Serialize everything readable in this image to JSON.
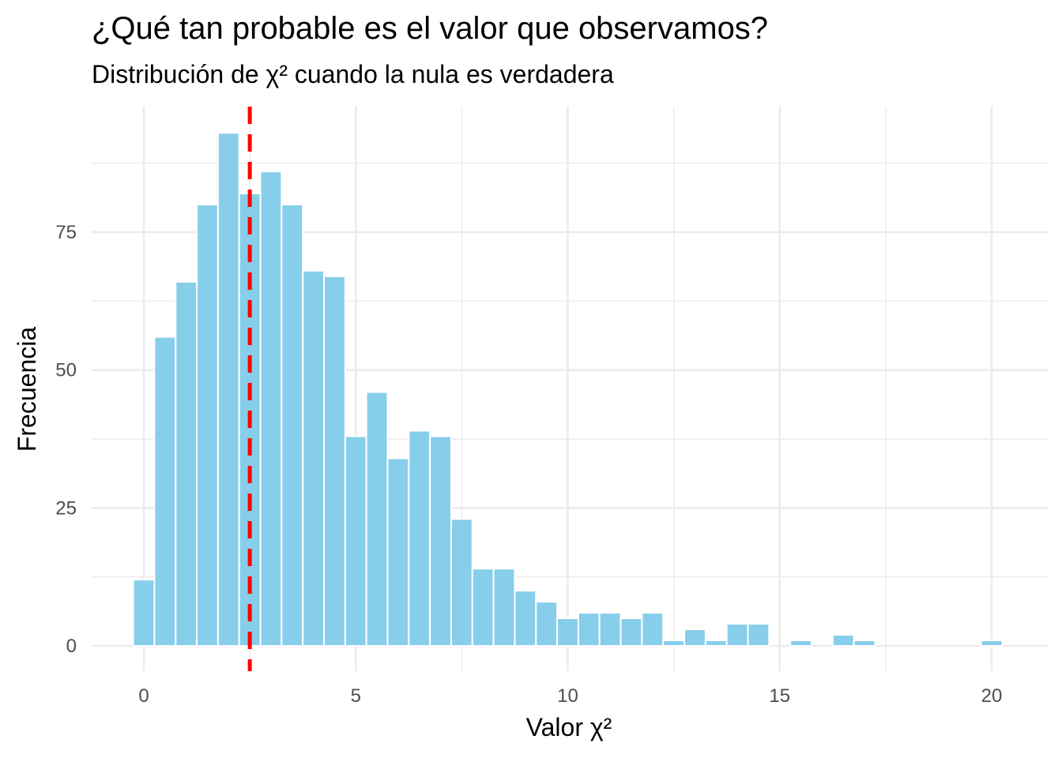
{
  "title": "¿Qué tan probable es el valor que observamos?",
  "subtitle": "Distribución de χ² cuando la nula es verdadera",
  "colors": {
    "bar_fill": "#87CEEB",
    "bar_outline": "#ffffff",
    "reference_line": "#FF0000",
    "grid": "#EBEBEB"
  },
  "chart_data": {
    "type": "bar",
    "xlabel": "Valor χ²",
    "ylabel": "Frecuencia",
    "xlim": [
      -0.5,
      20.5
    ],
    "ylim": [
      0,
      93
    ],
    "x_ticks": [
      0,
      5,
      10,
      15,
      20
    ],
    "x_tick_labels": [
      "0",
      "5",
      "10",
      "15",
      "20"
    ],
    "y_ticks": [
      0,
      25,
      50,
      75
    ],
    "y_tick_labels": [
      "0",
      "25",
      "50",
      "75"
    ],
    "grid": true,
    "legend": "none",
    "bin_width": 0.5,
    "bin_centers": [
      0.0,
      0.5,
      1.0,
      1.5,
      2.0,
      2.5,
      3.0,
      3.5,
      4.0,
      4.5,
      5.0,
      5.5,
      6.0,
      6.5,
      7.0,
      7.5,
      8.0,
      8.5,
      9.0,
      9.5,
      10.0,
      10.5,
      11.0,
      11.5,
      12.0,
      12.5,
      13.0,
      13.5,
      14.0,
      14.5,
      15.0,
      15.5,
      16.0,
      16.5,
      17.0,
      17.5,
      18.0,
      18.5,
      19.0,
      19.5,
      20.0
    ],
    "values": [
      12,
      56,
      66,
      80,
      93,
      82,
      86,
      80,
      68,
      67,
      38,
      46,
      34,
      39,
      38,
      23,
      14,
      14,
      10,
      8,
      5,
      6,
      6,
      5,
      6,
      1,
      3,
      1,
      4,
      4,
      0,
      1,
      0,
      2,
      1,
      0,
      0,
      0,
      0,
      0,
      1
    ],
    "reference_line": {
      "x": 2.5,
      "style": "dashed"
    }
  }
}
